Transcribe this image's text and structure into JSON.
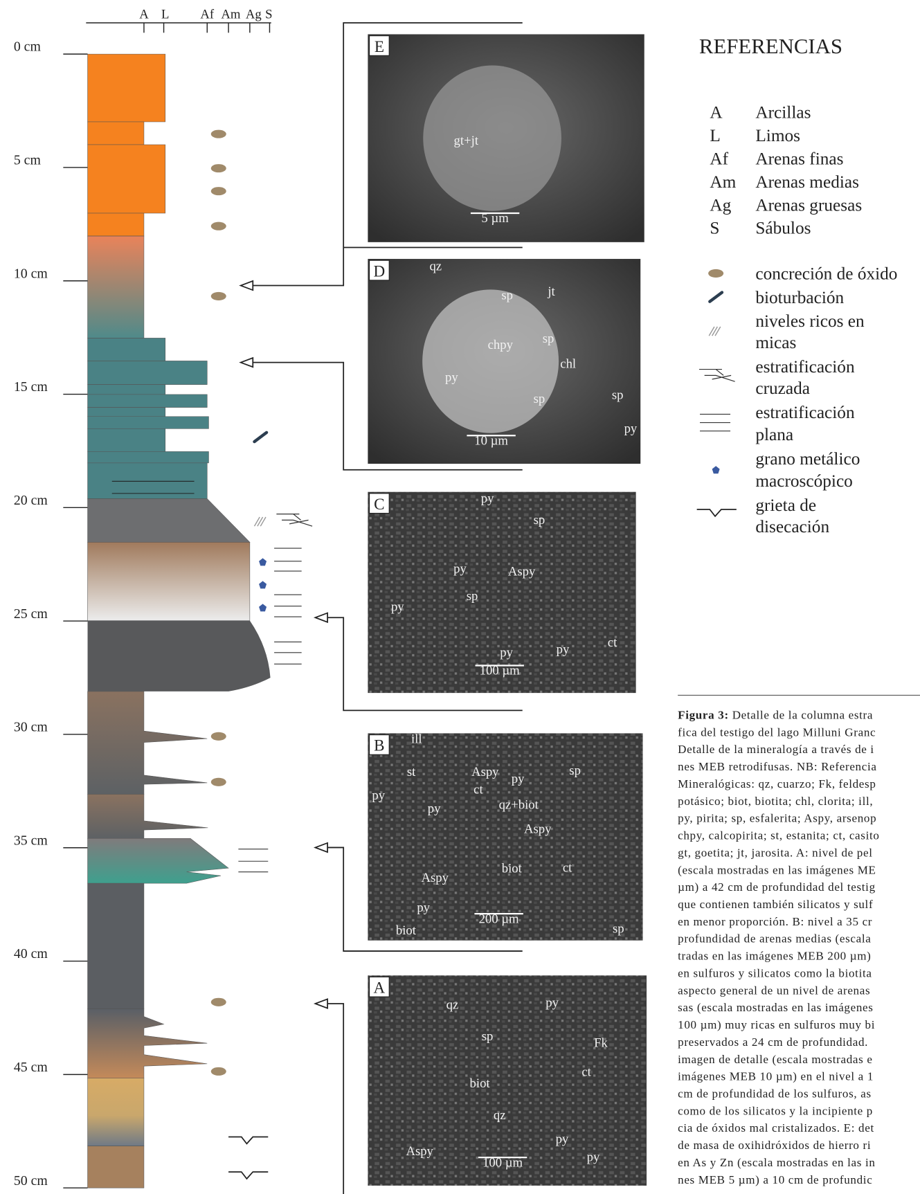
{
  "column": {
    "grain_size_labels": [
      "A",
      "L",
      "Af",
      "Am",
      "Ag",
      "S"
    ],
    "depth_labels": [
      "0 cm",
      "5 cm",
      "10 cm",
      "15 cm",
      "20 cm",
      "25 cm",
      "30 cm",
      "35 cm",
      "40 cm",
      "45 cm",
      "50 cm"
    ]
  },
  "panels": [
    {
      "label": "E",
      "scale": "5 µm",
      "annotations": [
        "gt+jt"
      ]
    },
    {
      "label": "D",
      "scale": "10 µm",
      "annotations": [
        "qz",
        "sp",
        "jt",
        "chpy",
        "sp",
        "chl",
        "py",
        "sp",
        "sp",
        "py"
      ]
    },
    {
      "label": "C",
      "scale": "100 µm",
      "annotations": [
        "py",
        "sp",
        "py",
        "Aspy",
        "sp",
        "py",
        "py",
        "py",
        "ct"
      ]
    },
    {
      "label": "B",
      "scale": "200 µm",
      "annotations": [
        "ill",
        "Aspy",
        "py",
        "sp",
        "st",
        "py",
        "ct",
        "py",
        "qz+biot",
        "Aspy",
        "Aspy",
        "biot",
        "ct",
        "py",
        "biot",
        "sp"
      ]
    },
    {
      "label": "A",
      "scale": "100 µm",
      "annotations": [
        "qz",
        "py",
        "sp",
        "Fk",
        "ct",
        "biot",
        "qz",
        "py",
        "Aspy",
        "py"
      ]
    }
  ],
  "references": {
    "title": "REFERENCIAS",
    "grain_sizes": [
      {
        "code": "A",
        "name": "Arcillas"
      },
      {
        "code": "L",
        "name": "Limos"
      },
      {
        "code": "Af",
        "name": "Arenas finas"
      },
      {
        "code": "Am",
        "name": "Arenas medias"
      },
      {
        "code": "Ag",
        "name": "Arenas gruesas"
      },
      {
        "code": "S",
        "name": "Sábulos"
      }
    ],
    "symbols": [
      [
        "concreción de óxido"
      ],
      [
        "bioturbación"
      ],
      [
        "niveles ricos en",
        "micas"
      ],
      [
        "estratificación",
        "cruzada"
      ],
      [
        "estratificación",
        "plana"
      ],
      [
        "grano metálico",
        "macroscópico"
      ],
      [
        "grieta de",
        "disecación"
      ]
    ]
  },
  "caption": {
    "label": "Figura 3:",
    "lines": [
      " Detalle de la columna estra",
      "fica del testigo del lago Milluni Granc",
      "Detalle de la mineralogía a través de i",
      "nes MEB retrodifusas. NB: Referencia",
      "Mineralógicas: qz, cuarzo; Fk, feldesp",
      "potásico; biot, biotita; chl, clorita; ill,",
      "py, pirita; sp, esfalerita; Aspy, arsenop",
      "chpy, calcopirita; st, estanita; ct, casito",
      "gt, goetita; jt, jarosita. A: nivel de pel",
      "(escala mostradas en las imágenes ME",
      "µm) a 42 cm de profundidad del testig",
      "que contienen también silicatos y sulf",
      "en menor proporción. B: nivel a 35 cr",
      "profundidad de arenas medias (escala",
      "tradas en las imágenes MEB 200 µm)",
      "en sulfuros y silicatos como la biotita",
      "aspecto general de un nivel de arenas",
      "sas (escala mostradas en las imágenes",
      "100 µm) muy ricas en sulfuros muy bi",
      "preservados a 24 cm de profundidad.",
      "imagen de detalle (escala mostradas e",
      "imágenes MEB 10 µm) en el nivel a 1",
      "cm de profundidad de los sulfuros, as",
      "como de los silicatos y la incipiente p",
      "cia de óxidos mal cristalizados. E: det",
      "de masa de oxihidróxidos de hierro ri",
      "en As y Zn (escala mostradas en las in",
      "nes MEB 5 µm) a 10 cm de profundic"
    ]
  }
}
